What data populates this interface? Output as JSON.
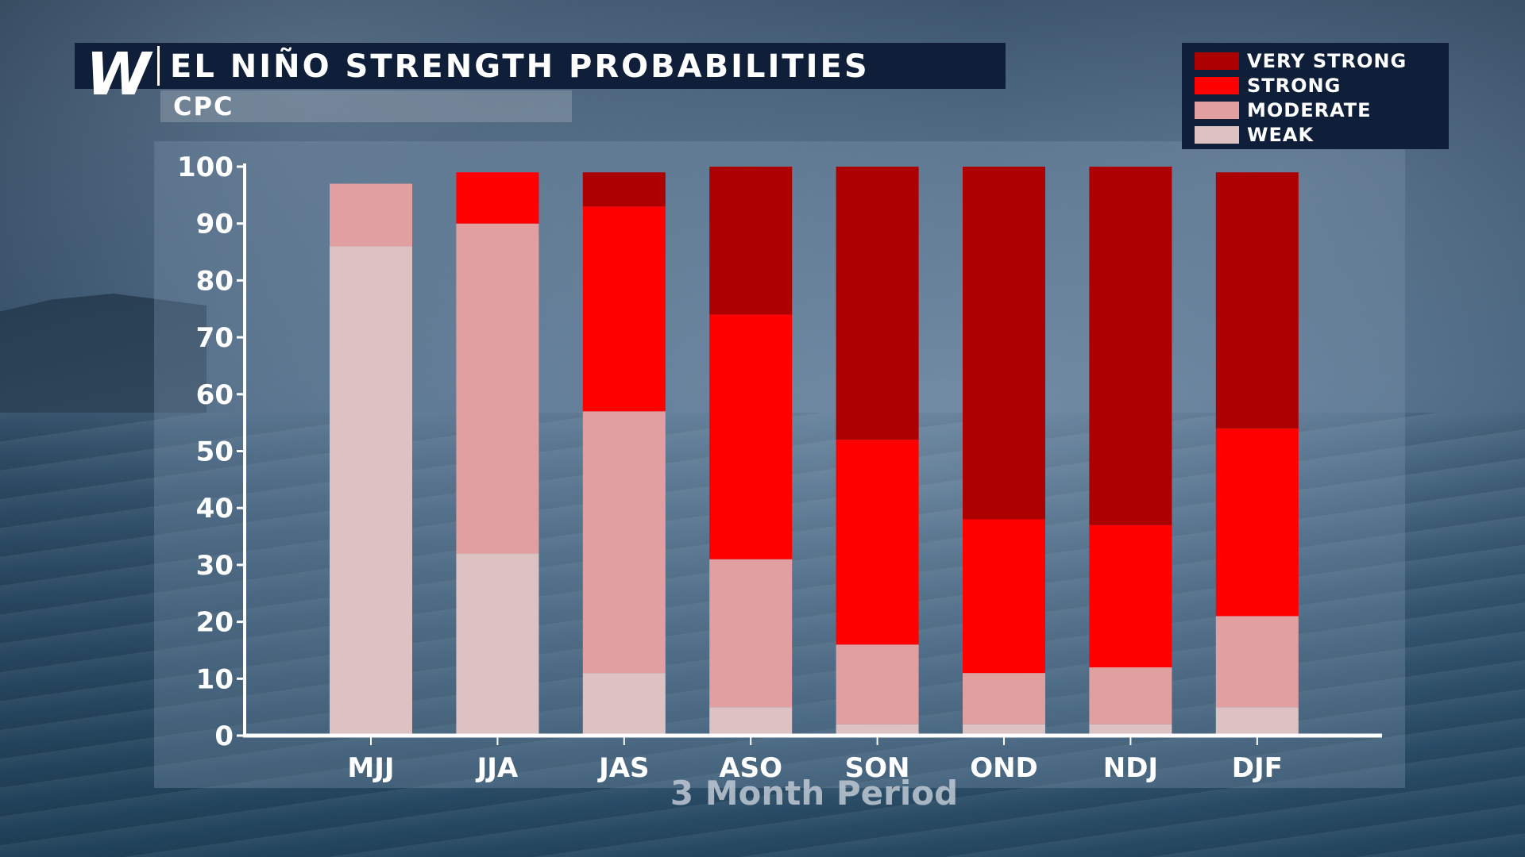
{
  "header": {
    "logo_text": "W",
    "title": "EL NIÑO STRENGTH PROBABILITIES",
    "subtitle": "CPC"
  },
  "legend": [
    {
      "label": "VERY STRONG",
      "color": "#ad0000"
    },
    {
      "label": "STRONG",
      "color": "#ff0000"
    },
    {
      "label": "MODERATE",
      "color": "#e29f9f"
    },
    {
      "label": "WEAK",
      "color": "#dcc2c2"
    }
  ],
  "chart_data": {
    "type": "bar",
    "stacked": true,
    "title": "EL NIÑO STRENGTH PROBABILITIES",
    "subtitle": "CPC",
    "xlabel": "3 Month Period",
    "ylabel": "",
    "ylim": [
      0,
      100
    ],
    "yticks": [
      0,
      10,
      20,
      30,
      40,
      50,
      60,
      70,
      80,
      90,
      100
    ],
    "categories": [
      "MJJ",
      "JJA",
      "JAS",
      "ASO",
      "SON",
      "OND",
      "NDJ",
      "DJF"
    ],
    "series": [
      {
        "name": "WEAK",
        "color": "#dcc2c2",
        "values": [
          86,
          32,
          11,
          5,
          2,
          2,
          2,
          5
        ]
      },
      {
        "name": "MODERATE",
        "color": "#e29f9f",
        "values": [
          11,
          58,
          46,
          26,
          14,
          9,
          10,
          16
        ]
      },
      {
        "name": "STRONG",
        "color": "#ff0000",
        "values": [
          0,
          9,
          36,
          43,
          36,
          27,
          25,
          33
        ]
      },
      {
        "name": "VERY STRONG",
        "color": "#ad0000",
        "values": [
          0,
          0,
          6,
          26,
          48,
          62,
          63,
          45
        ]
      }
    ],
    "legend_position": "top-right",
    "grid": false
  }
}
